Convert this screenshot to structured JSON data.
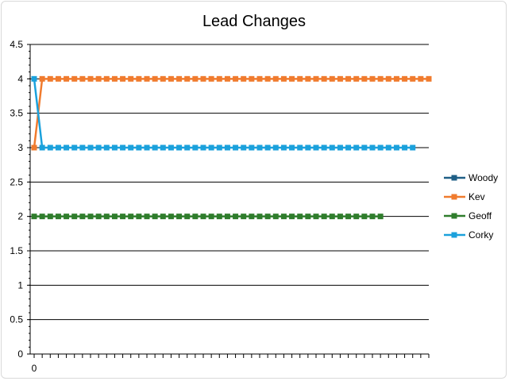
{
  "chart_data": {
    "type": "line",
    "title": "Lead Changes",
    "xlabel": "",
    "ylabel": "",
    "ylim": [
      0,
      4.5
    ],
    "ytick_step": 0.5,
    "x_tick_labels": [
      "0"
    ],
    "grid": true,
    "legend_position": "right",
    "series": [
      {
        "name": "Woody",
        "color": "#1f5f86",
        "values": []
      },
      {
        "name": "Kev",
        "color": "#f07b2e",
        "values": [
          3,
          4,
          4,
          4,
          4,
          4,
          4,
          4,
          4,
          4,
          4,
          4,
          4,
          4,
          4,
          4,
          4,
          4,
          4,
          4,
          4,
          4,
          4,
          4,
          4,
          4,
          4,
          4,
          4,
          4,
          4,
          4,
          4,
          4,
          4,
          4,
          4,
          4,
          4,
          4,
          4,
          4,
          4,
          4,
          4,
          4,
          4,
          4,
          4,
          4
        ]
      },
      {
        "name": "Geoff",
        "color": "#2f7d2c",
        "values": [
          2,
          2,
          2,
          2,
          2,
          2,
          2,
          2,
          2,
          2,
          2,
          2,
          2,
          2,
          2,
          2,
          2,
          2,
          2,
          2,
          2,
          2,
          2,
          2,
          2,
          2,
          2,
          2,
          2,
          2,
          2,
          2,
          2,
          2,
          2,
          2,
          2,
          2,
          2,
          2,
          2,
          2,
          2,
          2
        ]
      },
      {
        "name": "Corky",
        "color": "#1ba1dc",
        "values": [
          4,
          3,
          3,
          3,
          3,
          3,
          3,
          3,
          3,
          3,
          3,
          3,
          3,
          3,
          3,
          3,
          3,
          3,
          3,
          3,
          3,
          3,
          3,
          3,
          3,
          3,
          3,
          3,
          3,
          3,
          3,
          3,
          3,
          3,
          3,
          3,
          3,
          3,
          3,
          3,
          3,
          3,
          3,
          3,
          3,
          3,
          3,
          3
        ]
      }
    ]
  }
}
